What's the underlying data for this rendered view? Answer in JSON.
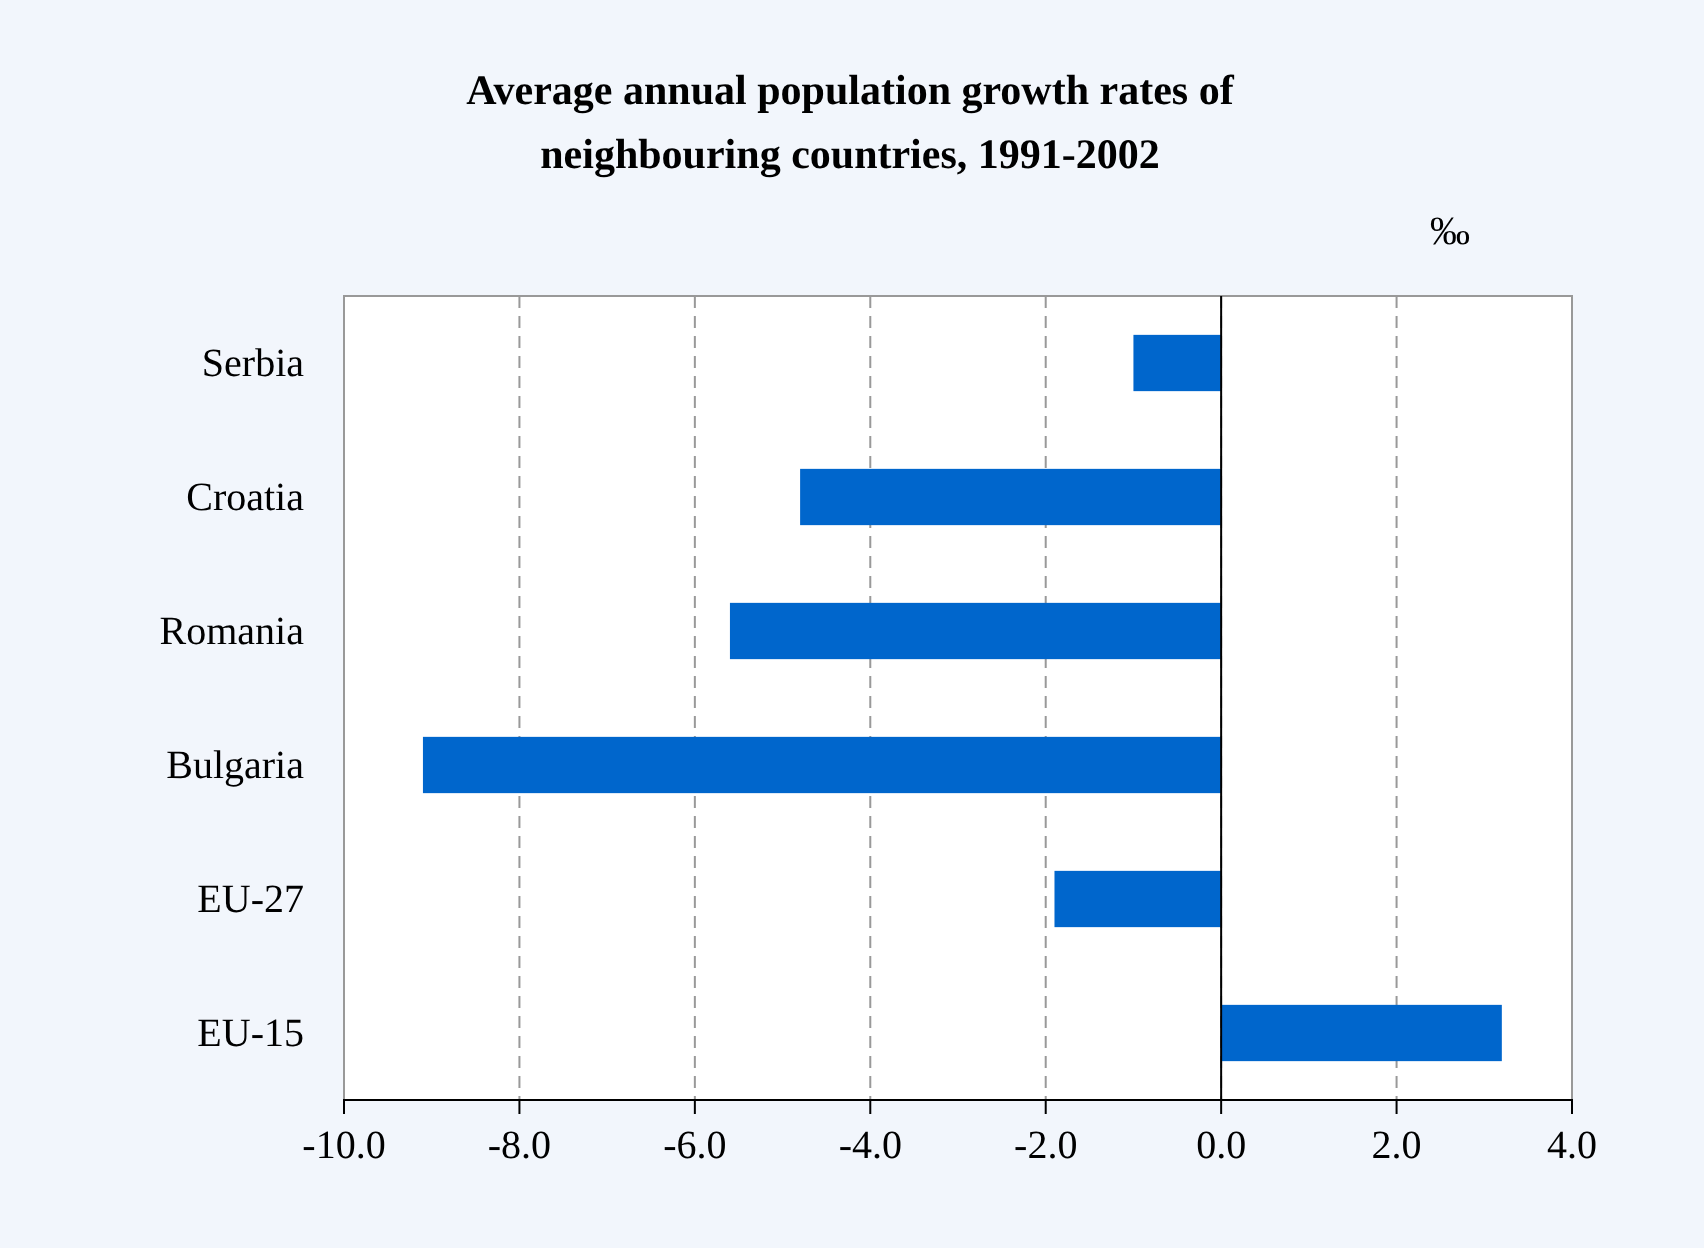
{
  "chart_data": {
    "type": "bar",
    "orientation": "horizontal",
    "title": "Average annual population growth rates of neighbouring countries, 1991-2002",
    "categories": [
      "Serbia",
      "Croatia",
      "Romania",
      "Bulgaria",
      "EU-27",
      "EU-15"
    ],
    "values": [
      -1.0,
      -4.8,
      -5.6,
      -9.1,
      -1.9,
      3.2
    ],
    "color": "#0066cc",
    "xlim": [
      -10,
      4
    ],
    "xticks": [
      {
        "value": -10,
        "label": "-10.0"
      },
      {
        "value": -8,
        "label": "-8.0"
      },
      {
        "value": -6,
        "label": "-6.0"
      },
      {
        "value": -4,
        "label": "-4.0"
      },
      {
        "value": -2,
        "label": "-2.0"
      },
      {
        "value": 0,
        "label": "0.0"
      },
      {
        "value": 2,
        "label": "2.0"
      },
      {
        "value": 4,
        "label": "4.0"
      }
    ],
    "grid": "x",
    "annotations": [
      "‰"
    ]
  }
}
